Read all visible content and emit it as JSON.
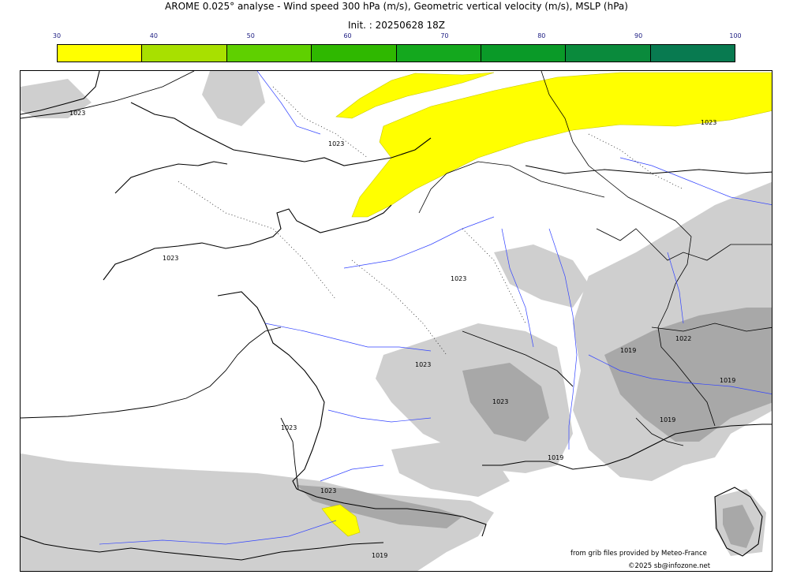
{
  "title": "AROME 0.025° analyse - Wind speed 300 hPa (m/s), Geometric vertical velocity (m/s), MSLP (hPa)",
  "subtitle": "Init. : 20250628 18Z",
  "colorbar": {
    "ticks": [
      "30",
      "40",
      "50",
      "60",
      "70",
      "80",
      "90",
      "100"
    ],
    "colors": [
      "#ffff00",
      "#a8e000",
      "#5fd000",
      "#2fb800",
      "#14a81e",
      "#0a9a28",
      "#0a8a3c",
      "#087a50"
    ]
  },
  "isobar_labels": [
    "1023",
    "1023",
    "1023",
    "1023",
    "1023",
    "1023",
    "1023",
    "1023",
    "1023",
    "1022",
    "1019",
    "1019",
    "1019",
    "1019",
    "1019"
  ],
  "credits": {
    "line1": "from grib files provided by Meteo-France",
    "line2": "©2025 sb@infozone.net"
  },
  "colors": {
    "land_outline": "#000000",
    "rivers": "#3344ff",
    "relief": "#cfcfcf",
    "relief_dark": "#a8a8a8",
    "jet_core": "#ffff00"
  }
}
